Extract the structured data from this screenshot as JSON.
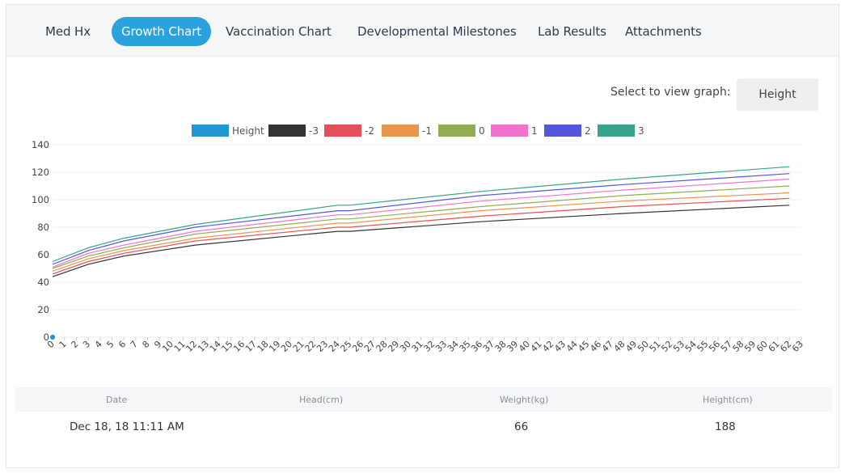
{
  "tabs": [
    {
      "label": "Med Hx"
    },
    {
      "label": "Growth Chart"
    },
    {
      "label": "Vaccination Chart"
    },
    {
      "label": "Developmental Milestones"
    },
    {
      "label": "Lab Results"
    },
    {
      "label": "Attachments"
    }
  ],
  "active_tab": "Growth Chart",
  "graph_select": {
    "label": "Select to view graph:",
    "value": "Height"
  },
  "colors": {
    "accent": "#2aa3dd",
    "height": "#2196d3",
    "m3": "#333333",
    "m2": "#e4505a",
    "m1": "#e8964d",
    "z0": "#8fae55",
    "p1": "#f173cf",
    "p2": "#5457d8",
    "p3": "#36a38a"
  },
  "chart_data": {
    "type": "line",
    "title": "",
    "xlabel": "",
    "ylabel": "",
    "ylim": [
      0,
      140
    ],
    "yticks": [
      0,
      20,
      40,
      60,
      80,
      100,
      120,
      140
    ],
    "xlim": [
      0,
      63
    ],
    "grid": true,
    "legend_position": "top",
    "legend": [
      "Height",
      "-3",
      "-2",
      "-1",
      "0",
      "1",
      "2",
      "3"
    ],
    "series": [
      {
        "name": "Height",
        "points": [
          [
            0,
            0
          ]
        ]
      },
      {
        "name": "-3",
        "points": [
          [
            0,
            44
          ],
          [
            3,
            53
          ],
          [
            6,
            59
          ],
          [
            12,
            67
          ],
          [
            24,
            77
          ],
          [
            25,
            77
          ],
          [
            36,
            84
          ],
          [
            48,
            90
          ],
          [
            62,
            96
          ]
        ]
      },
      {
        "name": "-2",
        "points": [
          [
            0,
            46
          ],
          [
            3,
            55
          ],
          [
            6,
            61
          ],
          [
            12,
            70
          ],
          [
            24,
            80
          ],
          [
            25,
            80
          ],
          [
            36,
            88
          ],
          [
            48,
            95
          ],
          [
            62,
            101
          ]
        ]
      },
      {
        "name": "-1",
        "points": [
          [
            0,
            48
          ],
          [
            3,
            57
          ],
          [
            6,
            63
          ],
          [
            12,
            72
          ],
          [
            24,
            83
          ],
          [
            25,
            83
          ],
          [
            36,
            92
          ],
          [
            48,
            99
          ],
          [
            62,
            105
          ]
        ]
      },
      {
        "name": "0",
        "points": [
          [
            0,
            50
          ],
          [
            3,
            59
          ],
          [
            6,
            65
          ],
          [
            12,
            75
          ],
          [
            24,
            86
          ],
          [
            25,
            86
          ],
          [
            36,
            95
          ],
          [
            48,
            103
          ],
          [
            62,
            110
          ]
        ]
      },
      {
        "name": "1",
        "points": [
          [
            0,
            51
          ],
          [
            3,
            61
          ],
          [
            6,
            67
          ],
          [
            12,
            77
          ],
          [
            24,
            89
          ],
          [
            25,
            89
          ],
          [
            36,
            99
          ],
          [
            48,
            107
          ],
          [
            62,
            115
          ]
        ]
      },
      {
        "name": "2",
        "points": [
          [
            0,
            53
          ],
          [
            3,
            63
          ],
          [
            6,
            70
          ],
          [
            12,
            80
          ],
          [
            24,
            92
          ],
          [
            25,
            92
          ],
          [
            36,
            103
          ],
          [
            48,
            111
          ],
          [
            62,
            119
          ]
        ]
      },
      {
        "name": "3",
        "points": [
          [
            0,
            55
          ],
          [
            3,
            65
          ],
          [
            6,
            72
          ],
          [
            12,
            82
          ],
          [
            24,
            96
          ],
          [
            25,
            96
          ],
          [
            36,
            106
          ],
          [
            48,
            115
          ],
          [
            62,
            124
          ]
        ]
      }
    ]
  },
  "table": {
    "headers": [
      "Date",
      "Head(cm)",
      "Weight(kg)",
      "Height(cm)"
    ],
    "rows": [
      [
        "Dec 18, 18 11:11 AM",
        "",
        "66",
        "188"
      ]
    ]
  }
}
